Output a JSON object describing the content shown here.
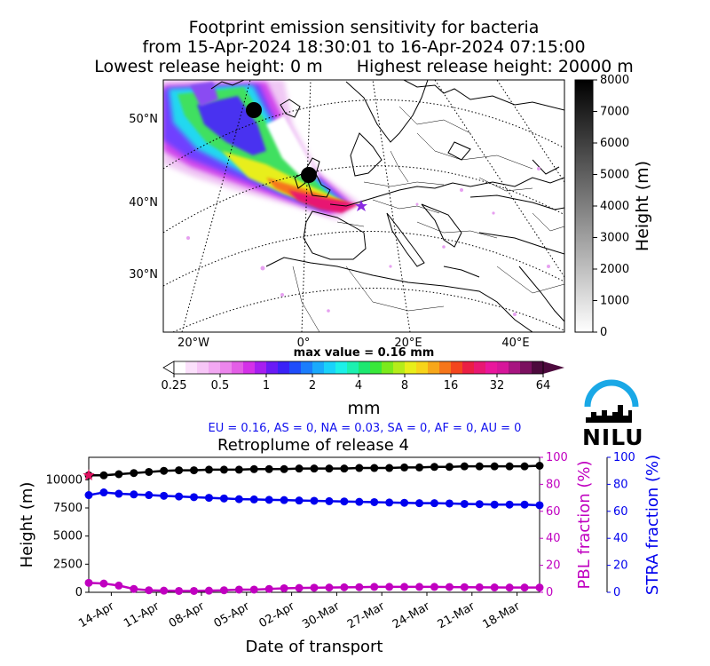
{
  "title": {
    "line1": "Footprint emission sensitivity for bacteria",
    "line2": "from 15-Apr-2024 18:30:01 to 16-Apr-2024 07:15:00",
    "lowest": "Lowest release height: 0 m",
    "highest": "Highest release height: 20000 m"
  },
  "map": {
    "lat_labels": [
      "50°N",
      "40°N",
      "30°N"
    ],
    "lon_labels": [
      "20°W",
      "0°",
      "20°E",
      "40°E"
    ],
    "max_value_label": "max value = 0.16 mm"
  },
  "height_colorbar": {
    "label": "Height (m)",
    "ticks": [
      "0",
      "1000",
      "2000",
      "3000",
      "4000",
      "5000",
      "6000",
      "7000",
      "8000"
    ]
  },
  "emission_colorbar": {
    "label": "mm",
    "ticks": [
      "0.25",
      "0.5",
      "1",
      "2",
      "4",
      "8",
      "16",
      "32",
      "64"
    ],
    "colors": [
      "#ffffff",
      "#fbe0fb",
      "#f7c6f7",
      "#f2a8f2",
      "#ec86ec",
      "#e35ee6",
      "#d431e8",
      "#a61ef0",
      "#6a1af5",
      "#3a22f7",
      "#1f4dfb",
      "#1b7dfc",
      "#1aaafc",
      "#19d2fa",
      "#1cf0e8",
      "#1cf0b0",
      "#1ce870",
      "#39e83a",
      "#7bea1c",
      "#b5ec1a",
      "#e8ee1a",
      "#f7d41a",
      "#f7a71a",
      "#f6761a",
      "#f3461e",
      "#ea1f44",
      "#e81872",
      "#e9179c",
      "#d6169a",
      "#a71480",
      "#7b105f",
      "#4d0a3d"
    ]
  },
  "region_summary": "EU = 0.16,  AS = 0,  NA = 0.03,  SA = 0,  AF = 0,  AU = 0",
  "logo": {
    "text": "NILU"
  },
  "chart_data": {
    "type": "line",
    "title": "Retroplume of release 4",
    "xlabel": "Date of transport",
    "ylabel": "Height (m)",
    "y2label": "PBL fraction (%)",
    "y3label": "STRA fraction (%)",
    "x_tick_labels": [
      "14-Apr",
      "11-Apr",
      "08-Apr",
      "05-Apr",
      "02-Apr",
      "30-Mar",
      "27-Mar",
      "24-Mar",
      "21-Mar",
      "18-Mar"
    ],
    "x_tick_days_back": [
      1.5,
      4.5,
      7.5,
      10.5,
      13.5,
      16.5,
      19.5,
      22.5,
      25.5,
      28.5
    ],
    "x_range_days_back": [
      0,
      30
    ],
    "ylim": [
      0,
      12000
    ],
    "y_ticks": [
      0,
      2500,
      5000,
      7500,
      10000
    ],
    "y2lim": [
      0,
      100
    ],
    "y2_ticks": [
      0,
      20,
      40,
      60,
      80,
      100
    ],
    "y3lim": [
      0,
      100
    ],
    "y3_ticks": [
      0,
      20,
      40,
      60,
      80,
      100
    ],
    "days_back": [
      0,
      1,
      2,
      3,
      4,
      5,
      6,
      7,
      8,
      9,
      10,
      11,
      12,
      13,
      14,
      15,
      16,
      17,
      18,
      19,
      20,
      21,
      22,
      23,
      24,
      25,
      26,
      27,
      28,
      29,
      30
    ],
    "series": [
      {
        "name": "Height",
        "axis": "left",
        "color": "#000000",
        "values": [
          10400,
          10400,
          10500,
          10600,
          10700,
          10800,
          10850,
          10850,
          10900,
          10900,
          10900,
          10950,
          10950,
          10950,
          11000,
          11000,
          11000,
          11000,
          11050,
          11050,
          11050,
          11100,
          11100,
          11150,
          11150,
          11200,
          11200,
          11200,
          11200,
          11200,
          11250
        ]
      },
      {
        "name": "PBL fraction",
        "axis": "right1",
        "color": "#c000c0",
        "values": [
          7,
          6.5,
          5,
          2.5,
          1.5,
          1.2,
          1,
          1,
          1.2,
          1.5,
          2,
          2,
          2.5,
          3,
          3.2,
          3.4,
          3.5,
          3.7,
          3.8,
          4,
          4,
          4,
          4,
          4,
          3.9,
          3.8,
          3.7,
          3.6,
          3.5,
          3.5,
          3.5
        ]
      },
      {
        "name": "STRA fraction",
        "axis": "right2",
        "color": "#0000ee",
        "values": [
          72,
          74,
          73,
          72.5,
          72,
          71.5,
          71,
          70.5,
          70,
          69.5,
          69,
          68.8,
          68.5,
          68.3,
          68,
          67.8,
          67.5,
          67.3,
          67,
          66.8,
          66.5,
          66.3,
          66,
          66,
          65.8,
          65.5,
          65.3,
          65,
          65,
          65,
          64.5
        ]
      }
    ],
    "release_marker": {
      "days_back": 0,
      "height": 10400,
      "color": "#e0115f"
    }
  }
}
